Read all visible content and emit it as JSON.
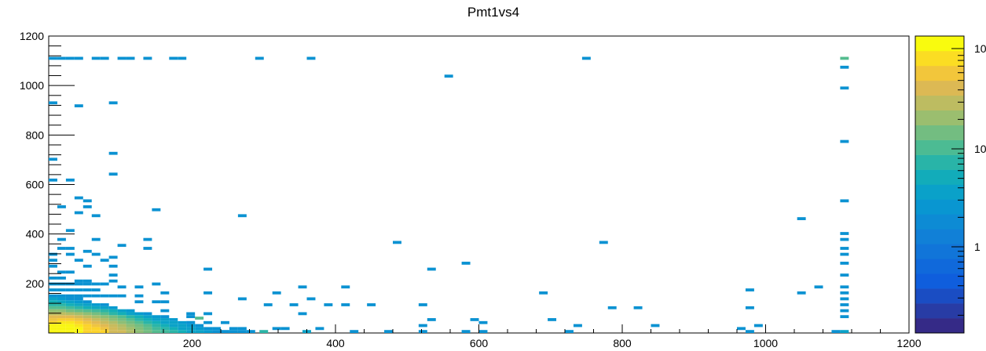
{
  "chart_data": {
    "type": "heatmap",
    "title": "Pmt1vs4",
    "xlabel": "",
    "ylabel": "",
    "xlim": [
      0,
      1200
    ],
    "ylim": [
      0,
      1200
    ],
    "bin_width": [
      12,
      12
    ],
    "z_scale": "log",
    "grid": false,
    "legend": "colorbar-right",
    "x_ticks": [
      200,
      400,
      600,
      800,
      1000,
      1200
    ],
    "y_ticks": [
      200,
      400,
      600,
      800,
      1000,
      1200
    ],
    "colorbar_tick_labels": [
      "1",
      "10",
      "10"
    ],
    "bins": [
      [
        6,
        6,
        3
      ],
      [
        18,
        6,
        3
      ],
      [
        30,
        6,
        3
      ],
      [
        42,
        6,
        3
      ],
      [
        54,
        6,
        2
      ],
      [
        66,
        6,
        2
      ],
      [
        78,
        6,
        2
      ],
      [
        90,
        6,
        1
      ],
      [
        102,
        6,
        1
      ],
      [
        114,
        6,
        0.7
      ],
      [
        126,
        6,
        0.5
      ],
      [
        138,
        6,
        0.4
      ],
      [
        150,
        6,
        0.3
      ],
      [
        162,
        6,
        0.25
      ],
      [
        174,
        6,
        0.2
      ],
      [
        186,
        6,
        0.15
      ],
      [
        198,
        6,
        0.1
      ],
      [
        210,
        6,
        0.1
      ],
      [
        222,
        6,
        0.08
      ],
      [
        234,
        6,
        0.06
      ],
      [
        246,
        6,
        0.06
      ],
      [
        258,
        6,
        0.06
      ],
      [
        270,
        6,
        0.06
      ],
      [
        282,
        6,
        0.06
      ],
      [
        6,
        18,
        3
      ],
      [
        18,
        18,
        3
      ],
      [
        30,
        18,
        3
      ],
      [
        42,
        18,
        3
      ],
      [
        54,
        18,
        2
      ],
      [
        66,
        18,
        2
      ],
      [
        78,
        18,
        1.5
      ],
      [
        90,
        18,
        1
      ],
      [
        102,
        18,
        0.8
      ],
      [
        114,
        18,
        0.6
      ],
      [
        126,
        18,
        0.45
      ],
      [
        138,
        18,
        0.35
      ],
      [
        150,
        18,
        0.25
      ],
      [
        162,
        18,
        0.2
      ],
      [
        174,
        18,
        0.15
      ],
      [
        186,
        18,
        0.1
      ],
      [
        198,
        18,
        0.1
      ],
      [
        210,
        18,
        0.08
      ],
      [
        222,
        18,
        0.06
      ],
      [
        234,
        18,
        0.06
      ],
      [
        258,
        18,
        0.06
      ],
      [
        270,
        18,
        0.06
      ],
      [
        6,
        30,
        3
      ],
      [
        18,
        30,
        3
      ],
      [
        30,
        30,
        3
      ],
      [
        42,
        30,
        2.5
      ],
      [
        54,
        30,
        2
      ],
      [
        66,
        30,
        1.5
      ],
      [
        78,
        30,
        1.2
      ],
      [
        90,
        30,
        0.9
      ],
      [
        102,
        30,
        0.7
      ],
      [
        114,
        30,
        0.5
      ],
      [
        126,
        30,
        0.4
      ],
      [
        138,
        30,
        0.3
      ],
      [
        150,
        30,
        0.2
      ],
      [
        162,
        30,
        0.15
      ],
      [
        174,
        30,
        0.1
      ],
      [
        186,
        30,
        0.1
      ],
      [
        198,
        30,
        0.08
      ],
      [
        210,
        30,
        0.06
      ],
      [
        6,
        42,
        2
      ],
      [
        18,
        42,
        2.5
      ],
      [
        30,
        42,
        2.5
      ],
      [
        42,
        42,
        2
      ],
      [
        54,
        42,
        1.5
      ],
      [
        66,
        42,
        1.2
      ],
      [
        78,
        42,
        0.9
      ],
      [
        90,
        42,
        0.7
      ],
      [
        102,
        42,
        0.5
      ],
      [
        114,
        42,
        0.4
      ],
      [
        126,
        42,
        0.3
      ],
      [
        138,
        42,
        0.2
      ],
      [
        150,
        42,
        0.15
      ],
      [
        162,
        42,
        0.1
      ],
      [
        174,
        42,
        0.1
      ],
      [
        186,
        42,
        0.08
      ],
      [
        198,
        42,
        0.06
      ],
      [
        6,
        54,
        1.5
      ],
      [
        18,
        54,
        1.8
      ],
      [
        30,
        54,
        1.8
      ],
      [
        42,
        54,
        1.5
      ],
      [
        54,
        54,
        1.2
      ],
      [
        66,
        54,
        0.9
      ],
      [
        78,
        54,
        0.7
      ],
      [
        90,
        54,
        0.5
      ],
      [
        102,
        54,
        0.4
      ],
      [
        114,
        54,
        0.3
      ],
      [
        126,
        54,
        0.2
      ],
      [
        138,
        54,
        0.15
      ],
      [
        150,
        54,
        0.1
      ],
      [
        162,
        54,
        0.1
      ],
      [
        174,
        54,
        0.08
      ],
      [
        6,
        66,
        1.2
      ],
      [
        18,
        66,
        1.2
      ],
      [
        30,
        66,
        1.2
      ],
      [
        42,
        66,
        1
      ],
      [
        54,
        66,
        0.8
      ],
      [
        66,
        66,
        0.6
      ],
      [
        78,
        66,
        0.5
      ],
      [
        90,
        66,
        0.4
      ],
      [
        102,
        66,
        0.3
      ],
      [
        114,
        66,
        0.2
      ],
      [
        126,
        66,
        0.15
      ],
      [
        138,
        66,
        0.1
      ],
      [
        150,
        66,
        0.08
      ],
      [
        6,
        78,
        0.8
      ],
      [
        18,
        78,
        0.8
      ],
      [
        30,
        78,
        0.7
      ],
      [
        42,
        78,
        0.6
      ],
      [
        54,
        78,
        0.5
      ],
      [
        66,
        78,
        0.4
      ],
      [
        78,
        78,
        0.3
      ],
      [
        90,
        78,
        0.2
      ],
      [
        102,
        78,
        0.15
      ],
      [
        114,
        78,
        0.1
      ],
      [
        126,
        78,
        0.08
      ],
      [
        138,
        78,
        0.06
      ],
      [
        6,
        90,
        0.5
      ],
      [
        18,
        90,
        0.5
      ],
      [
        30,
        90,
        0.4
      ],
      [
        42,
        90,
        0.35
      ],
      [
        54,
        90,
        0.3
      ],
      [
        66,
        90,
        0.25
      ],
      [
        78,
        90,
        0.2
      ],
      [
        90,
        90,
        0.15
      ],
      [
        102,
        90,
        0.1
      ],
      [
        114,
        90,
        0.08
      ],
      [
        6,
        102,
        0.3
      ],
      [
        18,
        102,
        0.3
      ],
      [
        30,
        102,
        0.25
      ],
      [
        42,
        102,
        0.2
      ],
      [
        54,
        102,
        0.15
      ],
      [
        66,
        102,
        0.12
      ],
      [
        78,
        102,
        0.1
      ],
      [
        90,
        102,
        0.08
      ],
      [
        6,
        114,
        0.2
      ],
      [
        18,
        114,
        0.2
      ],
      [
        30,
        114,
        0.15
      ],
      [
        42,
        114,
        0.12
      ],
      [
        54,
        114,
        0.1
      ],
      [
        66,
        114,
        0.08
      ],
      [
        78,
        114,
        0.06
      ],
      [
        6,
        126,
        0.15
      ],
      [
        18,
        126,
        0.12
      ],
      [
        30,
        126,
        0.1
      ],
      [
        42,
        126,
        0.08
      ],
      [
        54,
        126,
        0.06
      ],
      [
        6,
        138,
        0.1
      ],
      [
        18,
        138,
        0.08
      ],
      [
        30,
        138,
        0.06
      ],
      [
        42,
        138,
        0.06
      ],
      [
        1110,
        1110,
        0.3
      ],
      [
        1110,
        990,
        0.06
      ],
      [
        210,
        60,
        0.3
      ],
      [
        300,
        6,
        0.2
      ],
      [
        360,
        6,
        0.1
      ],
      [
        1110,
        6,
        0.1
      ],
      [
        6,
        1110,
        0.06
      ],
      [
        18,
        1110,
        0.06
      ],
      [
        30,
        1110,
        0.06
      ],
      [
        42,
        1110,
        0.06
      ],
      [
        66,
        1110,
        0.06
      ],
      [
        78,
        1110,
        0.06
      ],
      [
        102,
        1110,
        0.06
      ],
      [
        114,
        1110,
        0.06
      ],
      [
        138,
        1110,
        0.06
      ],
      [
        174,
        1110,
        0.06
      ],
      [
        186,
        1110,
        0.06
      ],
      [
        294,
        1110,
        0.06
      ],
      [
        366,
        1110,
        0.06
      ],
      [
        750,
        1110,
        0.06
      ],
      [
        1110,
        1074,
        0.06
      ],
      [
        558,
        1038,
        0.06
      ],
      [
        6,
        930,
        0.06
      ],
      [
        42,
        918,
        0.06
      ],
      [
        90,
        930,
        0.06
      ],
      [
        1110,
        774,
        0.06
      ],
      [
        90,
        726,
        0.06
      ],
      [
        6,
        702,
        0.06
      ],
      [
        90,
        642,
        0.06
      ],
      [
        6,
        618,
        0.06
      ],
      [
        30,
        618,
        0.06
      ],
      [
        42,
        546,
        0.06
      ],
      [
        54,
        534,
        0.06
      ],
      [
        18,
        510,
        0.06
      ],
      [
        54,
        510,
        0.06
      ],
      [
        150,
        498,
        0.06
      ],
      [
        42,
        486,
        0.06
      ],
      [
        66,
        474,
        0.06
      ],
      [
        270,
        474,
        0.06
      ],
      [
        1050,
        462,
        0.06
      ],
      [
        1110,
        534,
        0.06
      ],
      [
        30,
        414,
        0.06
      ],
      [
        18,
        378,
        0.06
      ],
      [
        66,
        378,
        0.06
      ],
      [
        138,
        378,
        0.06
      ],
      [
        1110,
        402,
        0.06
      ],
      [
        1110,
        378,
        0.06
      ],
      [
        18,
        342,
        0.06
      ],
      [
        30,
        342,
        0.06
      ],
      [
        54,
        330,
        0.06
      ],
      [
        102,
        354,
        0.06
      ],
      [
        138,
        342,
        0.06
      ],
      [
        486,
        366,
        0.06
      ],
      [
        774,
        366,
        0.06
      ],
      [
        1110,
        342,
        0.06
      ],
      [
        6,
        318,
        0.06
      ],
      [
        30,
        318,
        0.06
      ],
      [
        66,
        318,
        0.06
      ],
      [
        1110,
        318,
        0.06
      ],
      [
        6,
        294,
        0.06
      ],
      [
        42,
        294,
        0.06
      ],
      [
        78,
        294,
        0.06
      ],
      [
        90,
        306,
        0.06
      ],
      [
        582,
        282,
        0.06
      ],
      [
        1110,
        282,
        0.06
      ],
      [
        6,
        270,
        0.06
      ],
      [
        54,
        270,
        0.06
      ],
      [
        90,
        270,
        0.06
      ],
      [
        222,
        258,
        0.06
      ],
      [
        534,
        258,
        0.06
      ],
      [
        18,
        246,
        0.06
      ],
      [
        30,
        246,
        0.06
      ],
      [
        90,
        234,
        0.06
      ],
      [
        1110,
        234,
        0.06
      ],
      [
        6,
        222,
        0.06
      ],
      [
        18,
        222,
        0.06
      ],
      [
        42,
        210,
        0.06
      ],
      [
        54,
        210,
        0.06
      ],
      [
        90,
        210,
        0.06
      ],
      [
        150,
        198,
        0.06
      ],
      [
        6,
        198,
        0.06
      ],
      [
        18,
        198,
        0.06
      ],
      [
        30,
        198,
        0.06
      ],
      [
        42,
        198,
        0.06
      ],
      [
        54,
        198,
        0.06
      ],
      [
        66,
        198,
        0.06
      ],
      [
        78,
        198,
        0.06
      ],
      [
        102,
        186,
        0.06
      ],
      [
        126,
        186,
        0.06
      ],
      [
        354,
        186,
        0.06
      ],
      [
        414,
        186,
        0.06
      ],
      [
        978,
        174,
        0.06
      ],
      [
        1074,
        186,
        0.06
      ],
      [
        1110,
        186,
        0.06
      ],
      [
        6,
        174,
        0.06
      ],
      [
        18,
        174,
        0.06
      ],
      [
        30,
        174,
        0.06
      ],
      [
        42,
        174,
        0.06
      ],
      [
        54,
        174,
        0.06
      ],
      [
        66,
        174,
        0.06
      ],
      [
        162,
        162,
        0.06
      ],
      [
        222,
        162,
        0.06
      ],
      [
        318,
        162,
        0.06
      ],
      [
        690,
        162,
        0.06
      ],
      [
        1050,
        162,
        0.06
      ],
      [
        1110,
        162,
        0.06
      ],
      [
        6,
        150,
        0.06
      ],
      [
        18,
        150,
        0.06
      ],
      [
        30,
        150,
        0.06
      ],
      [
        42,
        150,
        0.06
      ],
      [
        54,
        150,
        0.06
      ],
      [
        66,
        150,
        0.06
      ],
      [
        78,
        150,
        0.06
      ],
      [
        90,
        150,
        0.06
      ],
      [
        102,
        150,
        0.06
      ],
      [
        126,
        150,
        0.06
      ],
      [
        270,
        138,
        0.06
      ],
      [
        366,
        138,
        0.06
      ],
      [
        1110,
        138,
        0.06
      ],
      [
        126,
        126,
        0.06
      ],
      [
        150,
        126,
        0.06
      ],
      [
        162,
        126,
        0.06
      ],
      [
        306,
        114,
        0.06
      ],
      [
        342,
        114,
        0.06
      ],
      [
        390,
        114,
        0.06
      ],
      [
        414,
        114,
        0.06
      ],
      [
        450,
        114,
        0.06
      ],
      [
        522,
        114,
        0.06
      ],
      [
        786,
        102,
        0.06
      ],
      [
        822,
        102,
        0.06
      ],
      [
        978,
        102,
        0.06
      ],
      [
        1110,
        114,
        0.06
      ],
      [
        162,
        90,
        0.06
      ],
      [
        198,
        78,
        0.06
      ],
      [
        222,
        78,
        0.06
      ],
      [
        162,
        66,
        0.06
      ],
      [
        198,
        66,
        0.06
      ],
      [
        354,
        78,
        0.06
      ],
      [
        534,
        54,
        0.06
      ],
      [
        594,
        54,
        0.06
      ],
      [
        702,
        54,
        0.06
      ],
      [
        1110,
        90,
        0.06
      ],
      [
        1110,
        66,
        0.06
      ],
      [
        198,
        42,
        0.06
      ],
      [
        222,
        42,
        0.06
      ],
      [
        246,
        42,
        0.06
      ],
      [
        522,
        30,
        0.06
      ],
      [
        606,
        42,
        0.06
      ],
      [
        738,
        30,
        0.06
      ],
      [
        846,
        30,
        0.06
      ],
      [
        990,
        30,
        0.06
      ],
      [
        318,
        18,
        0.06
      ],
      [
        330,
        18,
        0.06
      ],
      [
        378,
        18,
        0.06
      ],
      [
        426,
        6,
        0.06
      ],
      [
        474,
        6,
        0.06
      ],
      [
        522,
        6,
        0.06
      ],
      [
        582,
        6,
        0.06
      ],
      [
        606,
        6,
        0.06
      ],
      [
        726,
        6,
        0.06
      ],
      [
        966,
        18,
        0.06
      ],
      [
        978,
        6,
        0.06
      ],
      [
        1098,
        6,
        0.06
      ]
    ]
  }
}
